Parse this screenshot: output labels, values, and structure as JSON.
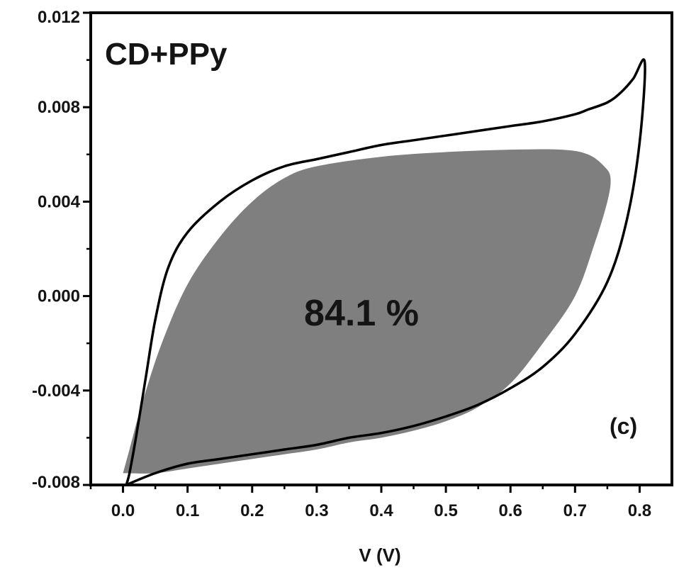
{
  "chart_data": {
    "type": "line",
    "xlabel": "V (V)",
    "ylabel": "",
    "xlim": [
      -0.05,
      0.85
    ],
    "ylim": [
      -0.008,
      0.012
    ],
    "x_ticks": [
      0.0,
      0.1,
      0.2,
      0.3,
      0.4,
      0.5,
      0.6,
      0.7,
      0.8
    ],
    "x_tick_labels": [
      "0.0",
      "0.1",
      "0.2",
      "0.3",
      "0.4",
      "0.5",
      "0.6",
      "0.7",
      "0.8"
    ],
    "y_ticks": [
      -0.008,
      -0.004,
      0.0,
      0.004,
      0.008,
      0.012
    ],
    "y_tick_labels": [
      "-0.008",
      "-0.004",
      "0.000",
      "0.004",
      "0.008",
      "0.012"
    ],
    "grid": false,
    "annotations": {
      "title": "CD+PPy",
      "retention": "84.1 %",
      "panel": "(c)"
    },
    "series": [
      {
        "role": "outer-cv-loop",
        "style": "line",
        "color": "#000000",
        "points": [
          [
            0.005,
            -0.008
          ],
          [
            0.05,
            -0.0075
          ],
          [
            0.1,
            -0.0071
          ],
          [
            0.15,
            -0.0069
          ],
          [
            0.2,
            -0.0067
          ],
          [
            0.25,
            -0.0065
          ],
          [
            0.3,
            -0.0063
          ],
          [
            0.35,
            -0.006
          ],
          [
            0.4,
            -0.0058
          ],
          [
            0.45,
            -0.0055
          ],
          [
            0.5,
            -0.0051
          ],
          [
            0.55,
            -0.0046
          ],
          [
            0.6,
            -0.0039
          ],
          [
            0.65,
            -0.003
          ],
          [
            0.7,
            -0.0016
          ],
          [
            0.75,
            0.0006
          ],
          [
            0.78,
            0.0032
          ],
          [
            0.8,
            0.0065
          ],
          [
            0.808,
            0.0099
          ],
          [
            0.79,
            0.0092
          ],
          [
            0.77,
            0.0086
          ],
          [
            0.75,
            0.0082
          ],
          [
            0.72,
            0.0079
          ],
          [
            0.7,
            0.0077
          ],
          [
            0.65,
            0.0074
          ],
          [
            0.6,
            0.0072
          ],
          [
            0.55,
            0.007
          ],
          [
            0.5,
            0.0068
          ],
          [
            0.45,
            0.0066
          ],
          [
            0.4,
            0.0064
          ],
          [
            0.35,
            0.0061
          ],
          [
            0.3,
            0.0058
          ],
          [
            0.25,
            0.0055
          ],
          [
            0.2,
            0.0049
          ],
          [
            0.15,
            0.004
          ],
          [
            0.1,
            0.0027
          ],
          [
            0.07,
            0.0012
          ],
          [
            0.05,
            -0.001
          ],
          [
            0.035,
            -0.0035
          ],
          [
            0.02,
            -0.006
          ],
          [
            0.01,
            -0.0075
          ],
          [
            0.005,
            -0.008
          ]
        ]
      },
      {
        "role": "inner-shaded-loop",
        "style": "fill",
        "color": "#7f7f7f",
        "points": [
          [
            0.0,
            -0.0075
          ],
          [
            0.05,
            -0.0075
          ],
          [
            0.1,
            -0.0073
          ],
          [
            0.15,
            -0.0071
          ],
          [
            0.2,
            -0.0069
          ],
          [
            0.25,
            -0.0067
          ],
          [
            0.3,
            -0.0065
          ],
          [
            0.35,
            -0.0062
          ],
          [
            0.4,
            -0.006
          ],
          [
            0.45,
            -0.0057
          ],
          [
            0.5,
            -0.0053
          ],
          [
            0.55,
            -0.0047
          ],
          [
            0.6,
            -0.0037
          ],
          [
            0.65,
            -0.002
          ],
          [
            0.7,
            0.0
          ],
          [
            0.73,
            0.0022
          ],
          [
            0.75,
            0.004
          ],
          [
            0.755,
            0.005
          ],
          [
            0.745,
            0.0055
          ],
          [
            0.72,
            0.006
          ],
          [
            0.68,
            0.0062
          ],
          [
            0.6,
            0.0062
          ],
          [
            0.5,
            0.0061
          ],
          [
            0.4,
            0.0059
          ],
          [
            0.3,
            0.0055
          ],
          [
            0.25,
            0.005
          ],
          [
            0.2,
            0.004
          ],
          [
            0.15,
            0.0025
          ],
          [
            0.1,
            0.0005
          ],
          [
            0.06,
            -0.002
          ],
          [
            0.03,
            -0.0045
          ],
          [
            0.01,
            -0.0065
          ],
          [
            0.0,
            -0.0075
          ]
        ]
      }
    ]
  }
}
